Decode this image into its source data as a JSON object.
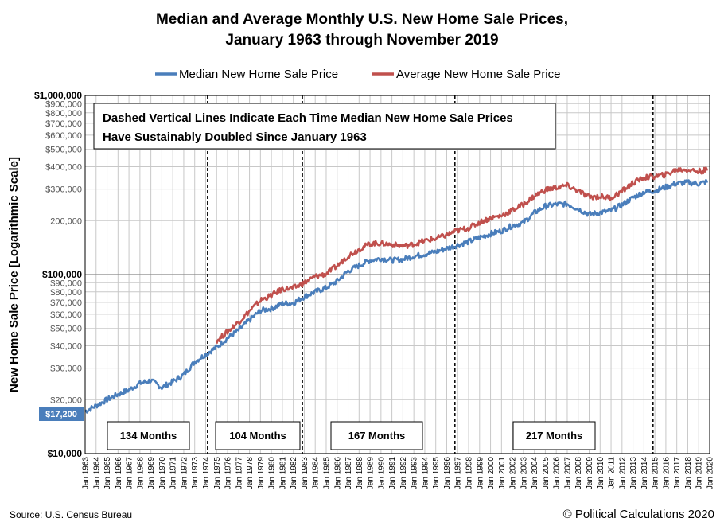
{
  "chart_data": {
    "type": "line",
    "title_lines": [
      "Median and Average Monthly U.S. New Home Sale Prices,",
      "January 1963 through November 2019"
    ],
    "ylabel": "New Home Sale Price [Logarithmic Scale]",
    "yscale": "log",
    "ylim": [
      10000,
      1000000
    ],
    "y_major_ticks": [
      {
        "value": 10000,
        "label": "$10,000"
      },
      {
        "value": 100000,
        "label": "$100,000"
      },
      {
        "value": 1000000,
        "label": "$1,000,000"
      }
    ],
    "y_minor_ticks": [
      {
        "value": 20000,
        "label": "$20,000"
      },
      {
        "value": 30000,
        "label": "$30,000"
      },
      {
        "value": 40000,
        "label": "$40,000"
      },
      {
        "value": 50000,
        "label": "$50,000"
      },
      {
        "value": 60000,
        "label": "$60,000"
      },
      {
        "value": 70000,
        "label": "$70,000"
      },
      {
        "value": 80000,
        "label": "$80,000"
      },
      {
        "value": 90000,
        "label": "$90,000"
      },
      {
        "value": 200000,
        "label": "200,000"
      },
      {
        "value": 300000,
        "label": "$300,000"
      },
      {
        "value": 400000,
        "label": "$400,000"
      },
      {
        "value": 500000,
        "label": "$500,000"
      },
      {
        "value": 600000,
        "label": "$600,000"
      },
      {
        "value": 700000,
        "label": "$700,000"
      },
      {
        "value": 800000,
        "label": "$800,000"
      },
      {
        "value": 900000,
        "label": "$900,000"
      }
    ],
    "xlim": [
      1963,
      2020
    ],
    "x_tick_labels": [
      "Jan 1963",
      "Jan 1964",
      "Jan 1965",
      "Jan 1966",
      "Jan 1967",
      "Jan 1968",
      "Jan 1969",
      "Jan 1970",
      "Jan 1971",
      "Jan 1972",
      "Jan 1973",
      "Jan 1974",
      "Jan 1975",
      "Jan 1976",
      "Jan 1977",
      "Jan 1978",
      "Jan 1979",
      "Jan 1980",
      "Jan 1981",
      "Jan 1982",
      "Jan 1983",
      "Jan 1984",
      "Jan 1985",
      "Jan 1986",
      "Jan 1987",
      "Jan 1988",
      "Jan 1989",
      "Jan 1990",
      "Jan 1991",
      "Jan 1992",
      "Jan 1993",
      "Jan 1994",
      "Jan 1995",
      "Jan 1996",
      "Jan 1997",
      "Jan 1998",
      "Jan 1999",
      "Jan 2000",
      "Jan 2001",
      "Jan 2002",
      "Jan 2003",
      "Jan 2004",
      "Jan 2005",
      "Jan 2006",
      "Jan 2007",
      "Jan 2008",
      "Jan 2009",
      "Jan 2010",
      "Jan 2011",
      "Jan 2012",
      "Jan 2013",
      "Jan 2014",
      "Jan 2015",
      "Jan 2016",
      "Jan 2017",
      "Jan 2018",
      "Jan 2019",
      "Jan 2020"
    ],
    "grid": true,
    "legend_position": "top",
    "series": [
      {
        "name": "Median New Home Sale Price",
        "color": "#4a7ebb",
        "points": [
          [
            1963.0,
            17200
          ],
          [
            1964.0,
            18500
          ],
          [
            1965.0,
            20000
          ],
          [
            1966.0,
            21400
          ],
          [
            1967.0,
            22700
          ],
          [
            1968.0,
            24700
          ],
          [
            1969.0,
            25600
          ],
          [
            1970.0,
            23400
          ],
          [
            1971.0,
            25200
          ],
          [
            1972.0,
            27600
          ],
          [
            1973.0,
            32500
          ],
          [
            1974.0,
            35900
          ],
          [
            1975.0,
            39300
          ],
          [
            1976.0,
            44200
          ],
          [
            1977.0,
            48800
          ],
          [
            1978.0,
            55700
          ],
          [
            1979.0,
            62900
          ],
          [
            1980.0,
            64600
          ],
          [
            1981.0,
            68900
          ],
          [
            1982.0,
            69300
          ],
          [
            1983.0,
            75300
          ],
          [
            1984.0,
            79900
          ],
          [
            1985.0,
            84300
          ],
          [
            1986.0,
            92000
          ],
          [
            1987.0,
            104500
          ],
          [
            1988.0,
            112500
          ],
          [
            1989.0,
            120000
          ],
          [
            1990.0,
            122900
          ],
          [
            1991.0,
            120000
          ],
          [
            1992.0,
            121500
          ],
          [
            1993.0,
            126500
          ],
          [
            1994.0,
            130000
          ],
          [
            1995.0,
            133900
          ],
          [
            1996.0,
            140000
          ],
          [
            1997.0,
            146000
          ],
          [
            1998.0,
            152500
          ],
          [
            1999.0,
            161000
          ],
          [
            2000.0,
            169000
          ],
          [
            2001.0,
            175200
          ],
          [
            2002.0,
            187600
          ],
          [
            2003.0,
            195000
          ],
          [
            2004.0,
            221000
          ],
          [
            2005.0,
            240900
          ],
          [
            2006.0,
            246500
          ],
          [
            2007.0,
            247900
          ],
          [
            2008.0,
            232100
          ],
          [
            2009.0,
            216700
          ],
          [
            2010.0,
            221800
          ],
          [
            2011.0,
            227200
          ],
          [
            2012.0,
            245200
          ],
          [
            2013.0,
            268900
          ],
          [
            2014.0,
            288500
          ],
          [
            2015.0,
            294200
          ],
          [
            2016.0,
            307800
          ],
          [
            2017.0,
            323100
          ],
          [
            2018.0,
            326400
          ],
          [
            2019.0,
            321500
          ],
          [
            2019.83,
            330800
          ]
        ]
      },
      {
        "name": "Average New Home Sale Price",
        "color": "#c0504d",
        "points": [
          [
            1975.0,
            42600
          ],
          [
            1976.0,
            48000
          ],
          [
            1977.0,
            54200
          ],
          [
            1978.0,
            62500
          ],
          [
            1979.0,
            71800
          ],
          [
            1980.0,
            76400
          ],
          [
            1981.0,
            83000
          ],
          [
            1982.0,
            83900
          ],
          [
            1983.0,
            89800
          ],
          [
            1984.0,
            97600
          ],
          [
            1985.0,
            100800
          ],
          [
            1986.0,
            111900
          ],
          [
            1987.0,
            127200
          ],
          [
            1988.0,
            138300
          ],
          [
            1989.0,
            148800
          ],
          [
            1990.0,
            149800
          ],
          [
            1991.0,
            147200
          ],
          [
            1992.0,
            144100
          ],
          [
            1993.0,
            147700
          ],
          [
            1994.0,
            154500
          ],
          [
            1995.0,
            158700
          ],
          [
            1996.0,
            166400
          ],
          [
            1997.0,
            176200
          ],
          [
            1998.0,
            181900
          ],
          [
            1999.0,
            195600
          ],
          [
            2000.0,
            207000
          ],
          [
            2001.0,
            213200
          ],
          [
            2002.0,
            228700
          ],
          [
            2003.0,
            246300
          ],
          [
            2004.0,
            274500
          ],
          [
            2005.0,
            297000
          ],
          [
            2006.0,
            305900
          ],
          [
            2007.0,
            313600
          ],
          [
            2008.0,
            292600
          ],
          [
            2009.0,
            270900
          ],
          [
            2010.0,
            272900
          ],
          [
            2011.0,
            267900
          ],
          [
            2012.0,
            292200
          ],
          [
            2013.0,
            324500
          ],
          [
            2014.0,
            347700
          ],
          [
            2015.0,
            352700
          ],
          [
            2016.0,
            360900
          ],
          [
            2017.0,
            384900
          ],
          [
            2018.0,
            385000
          ],
          [
            2019.0,
            376200
          ],
          [
            2019.83,
            384400
          ]
        ]
      }
    ],
    "annotations": {
      "note_lines": [
        "Dashed Vertical Lines Indicate Each Time Median New Home Sale Prices",
        "Have Sustainably Doubled Since January 1963"
      ],
      "start_label": "$17,200",
      "doubling_lines": [
        1974.17,
        1982.83,
        1996.75,
        2014.83
      ],
      "durations": [
        {
          "label": "134 Months",
          "x_start": 1963.0,
          "x_end": 1974.17
        },
        {
          "label": "104 Months",
          "x_start": 1974.17,
          "x_end": 1982.83
        },
        {
          "label": "167 Months",
          "x_start": 1982.83,
          "x_end": 1996.75
        },
        {
          "label": "217 Months",
          "x_start": 1996.75,
          "x_end": 2014.83
        }
      ]
    }
  },
  "footer": {
    "source": "Source: U.S. Census Bureau",
    "credit": "© Political Calculations 2020"
  }
}
